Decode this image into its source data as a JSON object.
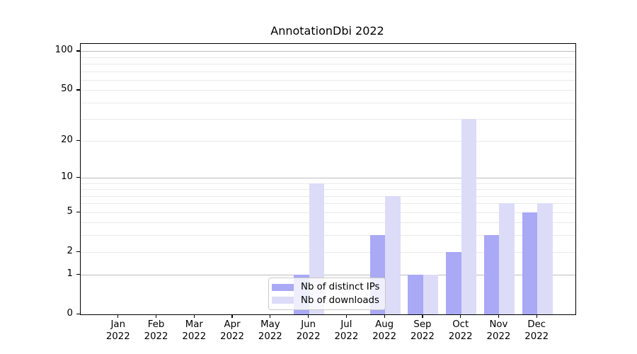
{
  "title": "AnnotationDbi 2022",
  "chart_data": {
    "type": "bar",
    "title": "AnnotationDbi 2022",
    "y_scale": "log1p",
    "ylim": [
      0,
      114
    ],
    "y_ticks": [
      0,
      1,
      2,
      5,
      10,
      20,
      50,
      100
    ],
    "major_gridlines": [
      1,
      10,
      100
    ],
    "minor_gridlines": [
      2,
      3,
      4,
      5,
      6,
      7,
      8,
      9,
      20,
      30,
      40,
      50,
      60,
      70,
      80,
      90
    ],
    "categories": [
      "Jan",
      "Feb",
      "Mar",
      "Apr",
      "May",
      "Jun",
      "Jul",
      "Aug",
      "Sep",
      "Oct",
      "Nov",
      "Dec"
    ],
    "year": "2022",
    "series": [
      {
        "name": "Nb of distinct IPs",
        "color": "#a9a9f5",
        "values": [
          0,
          0,
          0,
          0,
          0,
          1,
          0,
          3,
          1,
          2,
          3,
          5
        ]
      },
      {
        "name": "Nb of downloads",
        "color": "#dcdcf8",
        "values": [
          0,
          0,
          0,
          0,
          0,
          9,
          0,
          7,
          1,
          30,
          6,
          6
        ]
      }
    ],
    "legend_position": "lower center",
    "grid": true
  },
  "colors": {
    "background": "#ffffff",
    "axis": "#000000",
    "grid_major": "#bdbdbd",
    "grid_minor": "#eaeaea",
    "legend_border": "#c9c9c9"
  }
}
